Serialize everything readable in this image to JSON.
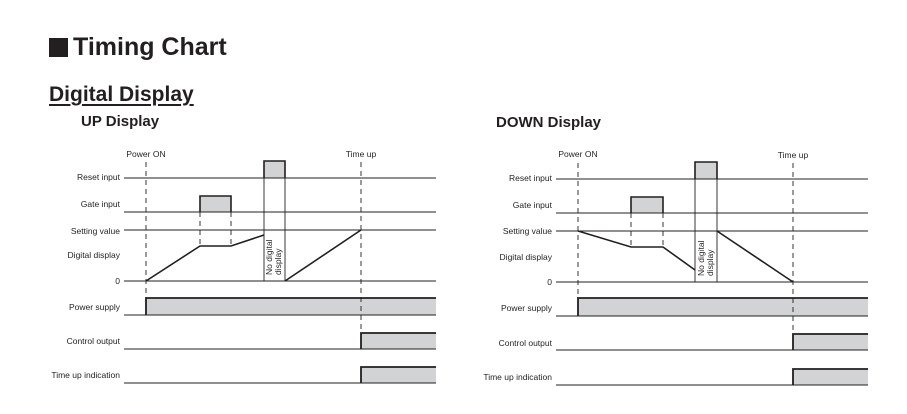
{
  "heading": "Timing Chart",
  "subheading": "Digital Display",
  "panels": [
    {
      "title": "UP Display",
      "markers": {
        "power_on": "Power ON",
        "time_up": "Time up"
      },
      "rows": {
        "reset": "Reset input",
        "gate": "Gate input",
        "setting": "Setting value",
        "display": "Digital display",
        "zero": "0",
        "power": "Power supply",
        "control": "Control output",
        "indication": "Time up indication"
      },
      "no_display_note": [
        "No digital",
        "display"
      ]
    },
    {
      "title": "DOWN Display",
      "markers": {
        "power_on": "Power ON",
        "time_up": "Time up"
      },
      "rows": {
        "reset": "Reset input",
        "gate": "Gate input",
        "setting": "Setting value",
        "display": "Digital display",
        "zero": "0",
        "power": "Power supply",
        "control": "Control output",
        "indication": "Time up indication"
      },
      "no_display_note": [
        "No digital",
        "display"
      ]
    }
  ],
  "colors": {
    "fill": "#d1d3d4",
    "line": "#231f20"
  }
}
